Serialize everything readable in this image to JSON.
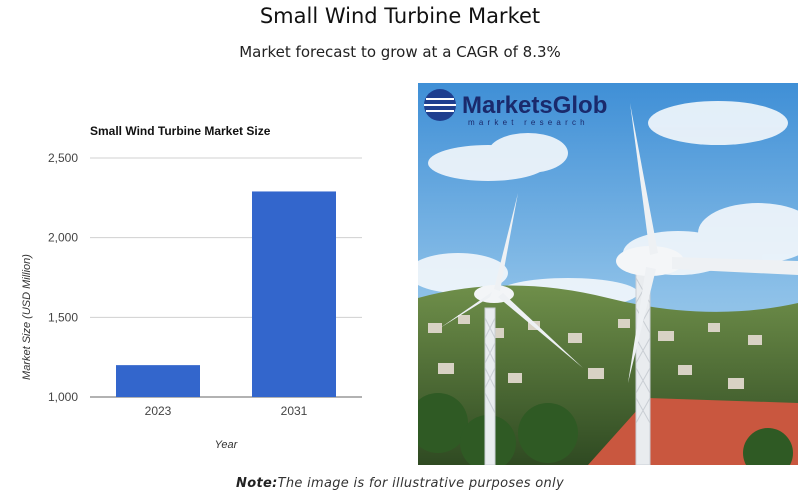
{
  "header": {
    "title": "Small Wind Turbine Market",
    "subtitle": "Market forecast to grow at a CAGR of 8.3%"
  },
  "chart_data": {
    "type": "bar",
    "title": "Small Wind Turbine Market Size",
    "categories": [
      "2023",
      "2031"
    ],
    "values": [
      1200,
      2290
    ],
    "xlabel": "Year",
    "ylabel": "Market Size (USD Million)",
    "ylim": [
      1000,
      2500
    ],
    "yticks": [
      "1,000",
      "1,500",
      "2,000",
      "2,500"
    ],
    "grid": true,
    "bar_color": "#3366cc"
  },
  "photo": {
    "logo_text": "MarketsGlob",
    "logo_tagline": "market research"
  },
  "footer": {
    "note_label": "Note:",
    "note_text": "The image is for illustrative purposes only"
  }
}
